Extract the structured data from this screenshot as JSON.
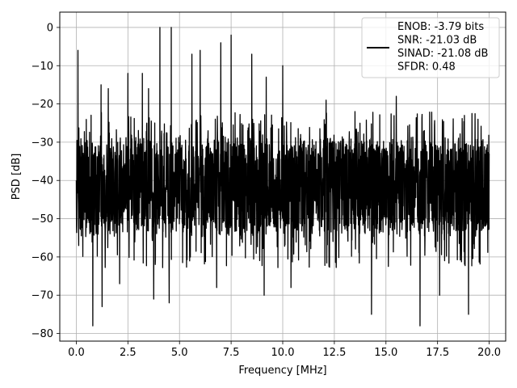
{
  "chart_data": {
    "type": "line",
    "title": "",
    "xlabel": "Frequency [MHz]",
    "ylabel": "PSD [dB]",
    "xlim": [
      -0.8,
      20.8
    ],
    "ylim": [
      -82,
      4
    ],
    "xticks": [
      0.0,
      2.5,
      5.0,
      7.5,
      10.0,
      12.5,
      15.0,
      17.5,
      20.0
    ],
    "xtick_labels": [
      "0.0",
      "2.5",
      "5.0",
      "7.5",
      "10.0",
      "12.5",
      "15.0",
      "17.5",
      "20.0"
    ],
    "yticks": [
      0,
      -10,
      -20,
      -30,
      -40,
      -50,
      -60,
      -70,
      -80
    ],
    "ytick_labels": [
      "0",
      "−10",
      "−20",
      "−30",
      "−40",
      "−50",
      "−60",
      "−70",
      "−80"
    ],
    "grid": true,
    "legend_position": "top-right",
    "legend_lines": [
      "ENOB: -3.79 bits",
      "SNR: -21.03 dB",
      "SINAD: -21.08 dB",
      "SFDR: 0.48"
    ],
    "line_color": "#000000",
    "series": [
      {
        "x_range": [
          0,
          20
        ],
        "noise_floor_range_db": [
          -55,
          -28
        ],
        "x": [
          0.0,
          0.08,
          1.2,
          1.55,
          2.5,
          3.2,
          3.5,
          4.05,
          4.6,
          5.6,
          6.0,
          7.0,
          7.5,
          8.5,
          9.2,
          10.0,
          12.1,
          13.5,
          15.5,
          18.8,
          0.8,
          1.25,
          2.1,
          3.75,
          4.5,
          6.8,
          9.1,
          10.4,
          14.3,
          16.65,
          17.6,
          19.0
        ],
        "y": [
          -40,
          -6,
          -15,
          -16,
          -12,
          -12,
          -16,
          0,
          0,
          -7,
          -6,
          -4,
          -2,
          -7,
          -13,
          -10,
          -19,
          -22,
          -18,
          -23,
          -78,
          -73,
          -67,
          -71,
          -72,
          -68,
          -70,
          -68,
          -75,
          -78,
          -70,
          -75
        ]
      }
    ]
  }
}
